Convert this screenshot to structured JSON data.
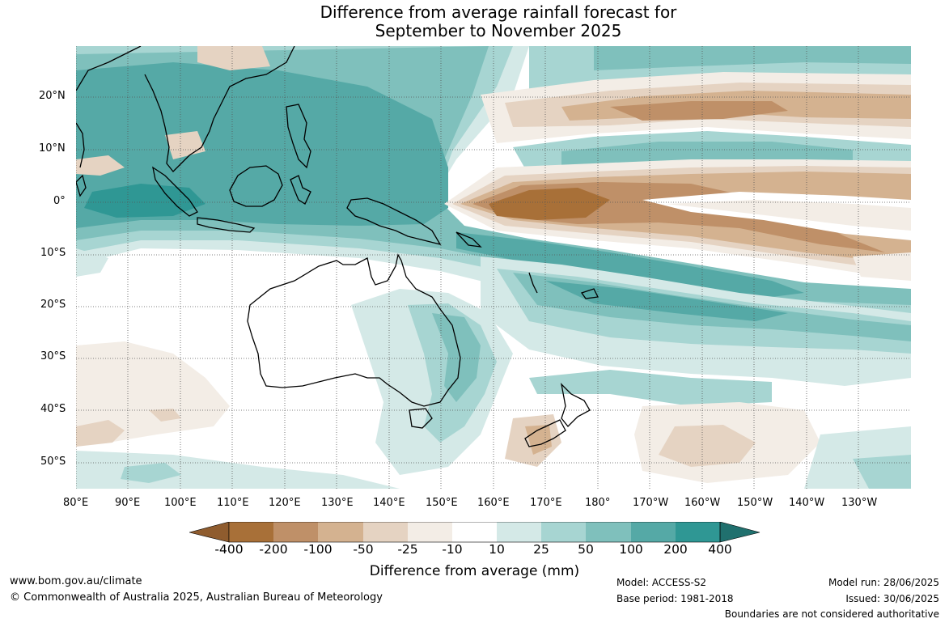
{
  "title": {
    "line1": "Difference from average rainfall forecast for",
    "line2": "September to November 2025"
  },
  "lat_labels": [
    "20°N",
    "10°N",
    "0°",
    "10°S",
    "20°S",
    "30°S",
    "40°S",
    "50°S"
  ],
  "lon_labels": [
    "80°E",
    "90°E",
    "100°E",
    "110°E",
    "120°E",
    "130°E",
    "140°E",
    "150°E",
    "160°E",
    "170°E",
    "180°",
    "170°W",
    "160°W",
    "150°W",
    "140°W",
    "130°W"
  ],
  "colorbar": {
    "labels": [
      "-400",
      "-200",
      "-100",
      "-50",
      "-25",
      "-10",
      "10",
      "25",
      "50",
      "100",
      "200",
      "400"
    ],
    "colors": [
      "#a87038",
      "#bf9068",
      "#d4b290",
      "#e5d3c2",
      "#f3ede6",
      "#ffffff",
      "#d4e9e7",
      "#a7d5d2",
      "#7fc0bc",
      "#55a9a6",
      "#2f9794"
    ],
    "end_low": "#8f5c2e",
    "end_high": "#20706e",
    "title": "Difference from average (mm)"
  },
  "footer": {
    "url": "www.bom.gov.au/climate",
    "copyright": "© Commonwealth of Australia 2025, Australian Bureau of Meteorology",
    "model": "Model: ACCESS-S2",
    "base_period": "Base period: 1981-2018",
    "model_run": "Model run: 28/06/2025",
    "issued": "Issued: 30/06/2025",
    "disclaimer": "Boundaries are not considered authoritative"
  }
}
